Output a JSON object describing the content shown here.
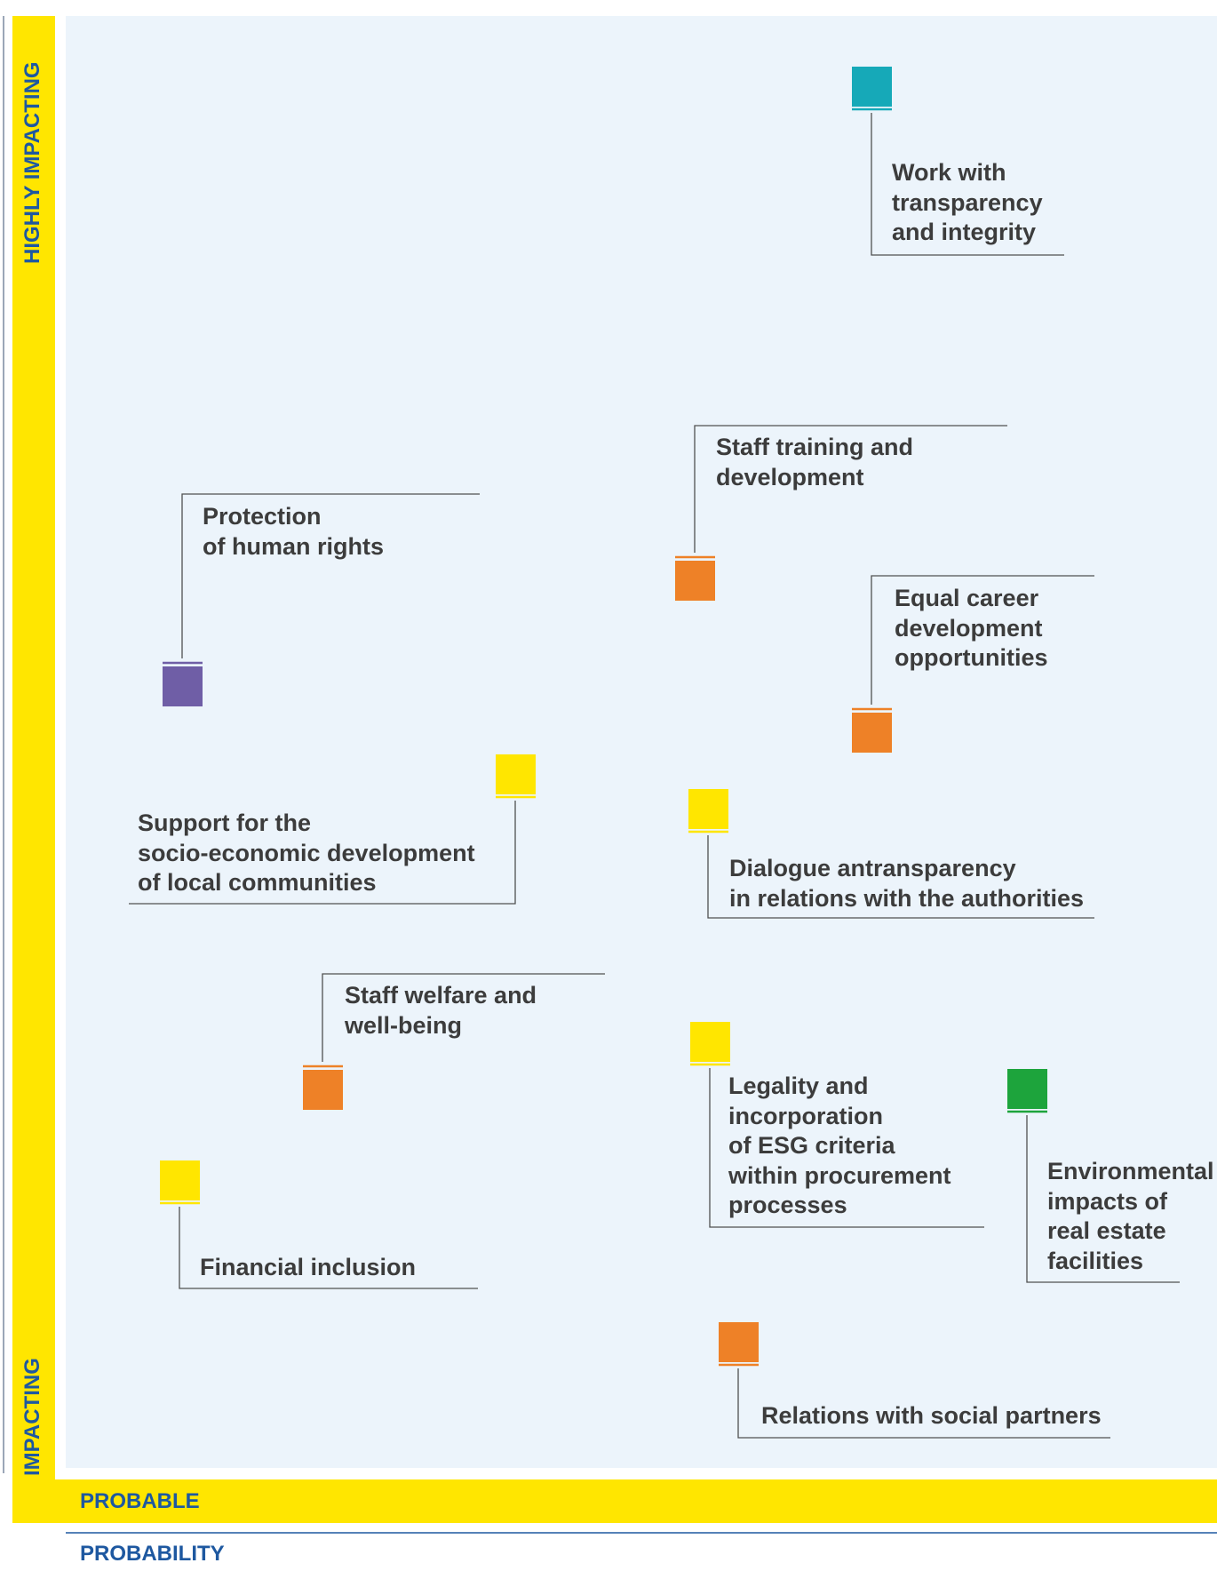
{
  "axes": {
    "y_high_label": "HIGHLY IMPACTING",
    "y_low_label": "IMPACTING",
    "x_low_label": "PROBABLE",
    "x_title": "PROBABILITY"
  },
  "colors": {
    "plot_background": "#ecf4fb",
    "axis_band": "#ffe600",
    "axis_text": "#1e58a0",
    "teal": "#16a9b8",
    "orange": "#ee8127",
    "purple": "#6f5ea6",
    "yellow": "#ffe600",
    "green": "#1da43c"
  },
  "topics": [
    {
      "id": "transparency",
      "label": "Work with\ntransparency\nand integrity",
      "color": "#16a9b8"
    },
    {
      "id": "training",
      "label": "Staff training and\ndevelopment",
      "color": "#ee8127"
    },
    {
      "id": "human-rights",
      "label": "Protection\nof human rights",
      "color": "#6f5ea6"
    },
    {
      "id": "equal-career",
      "label": "Equal career\ndevelopment\nopportunities",
      "color": "#ee8127"
    },
    {
      "id": "local-communities",
      "label": "Support for the\nsocio-economic development\nof local communities",
      "color": "#ffe600"
    },
    {
      "id": "authorities",
      "label": "Dialogue antransparency\nin relations with the authorities",
      "color": "#ffe600"
    },
    {
      "id": "welfare",
      "label": "Staff welfare and\nwell-being",
      "color": "#ee8127"
    },
    {
      "id": "procurement",
      "label": "Legality and\nincorporation\nof ESG criteria\nwithin procurement\nprocesses",
      "color": "#ffe600"
    },
    {
      "id": "environment",
      "label": "Environmental\nimpacts of\nreal estate\nfacilities",
      "color": "#1da43c"
    },
    {
      "id": "financial-inclusion",
      "label": "Financial inclusion",
      "color": "#ffe600"
    },
    {
      "id": "social-partners",
      "label": "Relations with social partners",
      "color": "#ee8127"
    }
  ]
}
